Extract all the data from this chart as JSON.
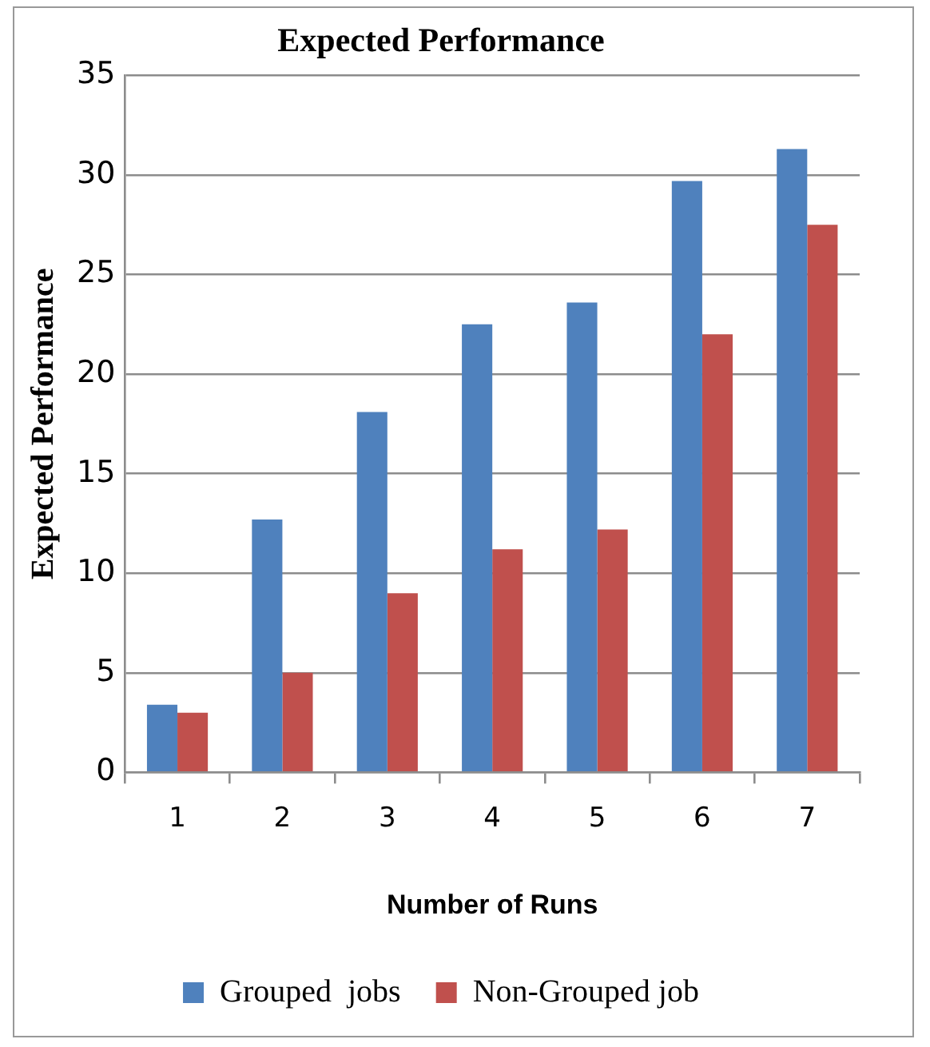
{
  "chart_data": {
    "type": "bar",
    "title": "Expected Performance",
    "xlabel": "Number of Runs",
    "ylabel": "Expected Performance",
    "categories": [
      "1",
      "2",
      "3",
      "4",
      "5",
      "6",
      "7"
    ],
    "series": [
      {
        "name": "Grouped  jobs",
        "color": "#4f81bd",
        "values": [
          3.4,
          12.7,
          18.1,
          22.5,
          23.6,
          29.7,
          31.3
        ]
      },
      {
        "name": "Non-Grouped job",
        "color": "#c0504d",
        "values": [
          3,
          5,
          9,
          11.2,
          12.2,
          22,
          27.5
        ]
      }
    ],
    "ylim": [
      0,
      35
    ],
    "yticks": [
      0,
      5,
      10,
      15,
      20,
      25,
      30,
      35
    ],
    "grid": "y",
    "legend": "bottom"
  }
}
